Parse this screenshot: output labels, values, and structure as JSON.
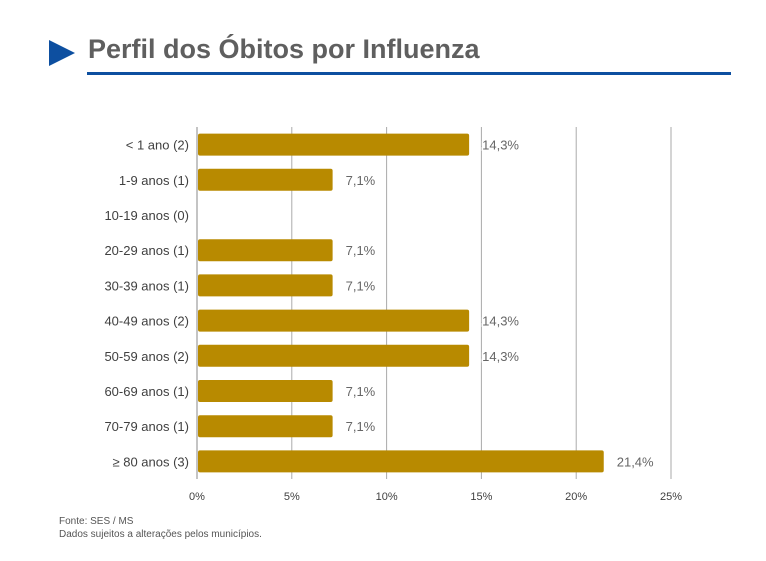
{
  "header": {
    "title": "Perfil dos Óbitos por Influenza"
  },
  "chart_data": {
    "type": "bar",
    "orientation": "horizontal",
    "title": "Perfil dos Óbitos por Influenza",
    "categories": [
      "< 1 ano (2)",
      "1-9 anos (1)",
      "10-19 anos (0)",
      "20-29 anos (1)",
      "30-39 anos (1)",
      "40-49 anos (2)",
      "50-59 anos (2)",
      "60-69 anos (1)",
      "70-79 anos (1)",
      "≥ 80 anos (3)"
    ],
    "values": [
      14.3,
      7.1,
      0,
      7.1,
      7.1,
      14.3,
      14.3,
      7.1,
      7.1,
      21.4
    ],
    "data_labels": [
      "14,3%",
      "7,1%",
      "",
      "7,1%",
      "7,1%",
      "14,3%",
      "14,3%",
      "7,1%",
      "7,1%",
      "21,4%"
    ],
    "xlim": [
      0,
      25
    ],
    "xticks": [
      "0%",
      "5%",
      "10%",
      "15%",
      "20%",
      "25%"
    ],
    "grid": true,
    "bar_color": "#b88a00"
  },
  "footer": {
    "source": "Fonte: SES / MS",
    "note": "Dados sujeitos a alterações pelos municípios."
  }
}
